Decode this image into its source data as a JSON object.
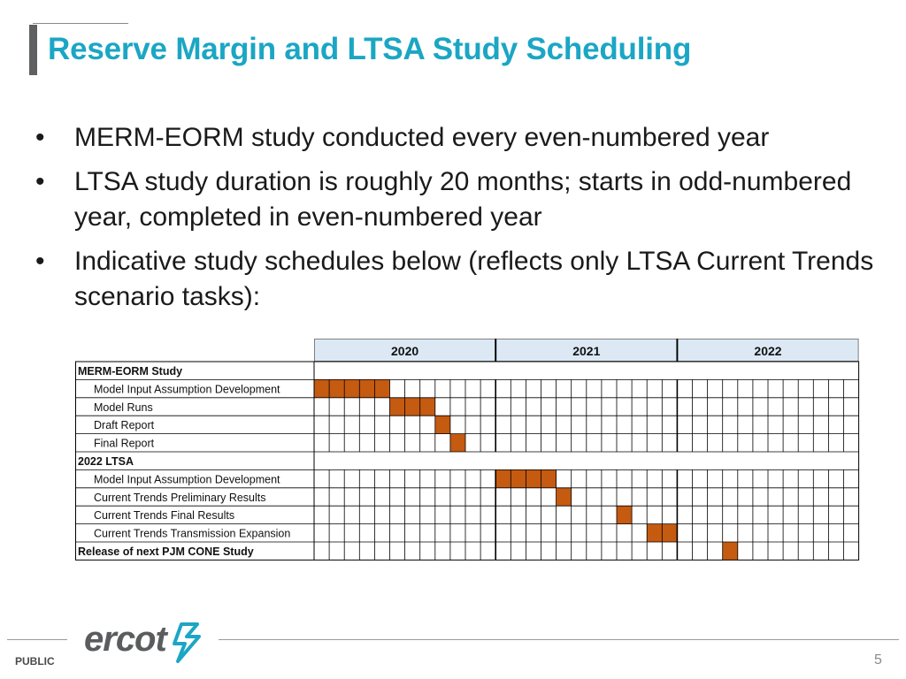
{
  "title": "Reserve Margin and LTSA Study Scheduling",
  "bullets": [
    "MERM-EORM study conducted every even-numbered year",
    "LTSA study duration is roughly 20 months; starts in odd-numbered year, completed in even-numbered year",
    "Indicative study schedules below (reflects only LTSA Current Trends scenario tasks):"
  ],
  "bullet_glyph": "•",
  "gantt": {
    "years": [
      "2020",
      "2021",
      "2022"
    ],
    "months_per_year": 12,
    "colors": {
      "bar": "#c55a11",
      "header": "#dce9f5",
      "grid": "#000000"
    },
    "rows": [
      {
        "label": "MERM-EORM Study",
        "type": "group",
        "filled": []
      },
      {
        "label": "Model Input Assumption Development",
        "type": "task",
        "filled": [
          1,
          2,
          3,
          4,
          5
        ]
      },
      {
        "label": "Model Runs",
        "type": "task",
        "filled": [
          6,
          7,
          8
        ]
      },
      {
        "label": "Draft Report",
        "type": "task",
        "filled": [
          9
        ]
      },
      {
        "label": "Final Report",
        "type": "task",
        "filled": [
          10
        ]
      },
      {
        "label": "2022 LTSA",
        "type": "group",
        "filled": []
      },
      {
        "label": "Model Input Assumption Development",
        "type": "task",
        "filled": [
          13,
          14,
          15,
          16
        ]
      },
      {
        "label": "Current Trends Preliminary Results",
        "type": "task",
        "filled": [
          17
        ]
      },
      {
        "label": "Current Trends Final Results",
        "type": "task",
        "filled": [
          21
        ]
      },
      {
        "label": "Current Trends Transmission Expansion",
        "type": "task",
        "filled": [
          23,
          24
        ]
      },
      {
        "label": "Release of next PJM CONE Study",
        "type": "milestone",
        "filled": [
          28
        ]
      }
    ]
  },
  "footer": {
    "logo_text": "ercot",
    "classification": "PUBLIC",
    "page_number": "5"
  }
}
